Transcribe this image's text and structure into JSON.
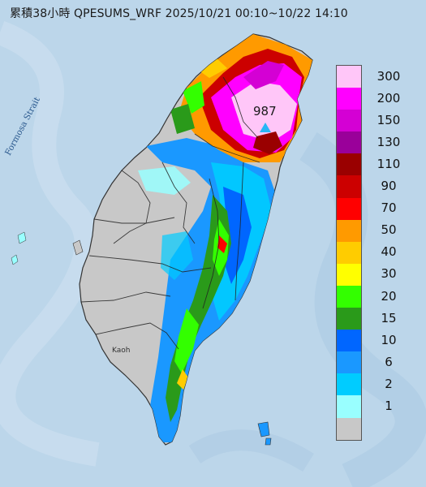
{
  "header": {
    "title": "累積38小時 QPESUMS_WRF 2025/10/21 00:10~10/22 14:10"
  },
  "map": {
    "strait_label": "Formosa Strait",
    "city_label": "Kaoh",
    "max_rainfall_value": "987",
    "max_marker_icon": "triangle-marker-icon"
  },
  "legend": {
    "items": [
      {
        "label": "300",
        "color": "#ffc6f8"
      },
      {
        "label": "200",
        "color": "#ff00ff"
      },
      {
        "label": "150",
        "color": "#d400d4"
      },
      {
        "label": "130",
        "color": "#9a009a"
      },
      {
        "label": "110",
        "color": "#9a0000"
      },
      {
        "label": "90",
        "color": "#cc0000"
      },
      {
        "label": "70",
        "color": "#ff0000"
      },
      {
        "label": "50",
        "color": "#ff9a00"
      },
      {
        "label": "40",
        "color": "#ffcc00"
      },
      {
        "label": "30",
        "color": "#ffff00"
      },
      {
        "label": "20",
        "color": "#33ff00"
      },
      {
        "label": "15",
        "color": "#2a9a1a"
      },
      {
        "label": "10",
        "color": "#0066ff"
      },
      {
        "label": "6",
        "color": "#1a98ff"
      },
      {
        "label": "2",
        "color": "#00ccff"
      },
      {
        "label": "1",
        "color": "#99ffff"
      },
      {
        "label": "",
        "color": "#c8c8c8"
      }
    ]
  },
  "colors": {
    "ocean": "#bcd6ea",
    "land_dry": "#c8c8c8",
    "marker": "#29b6f6"
  }
}
